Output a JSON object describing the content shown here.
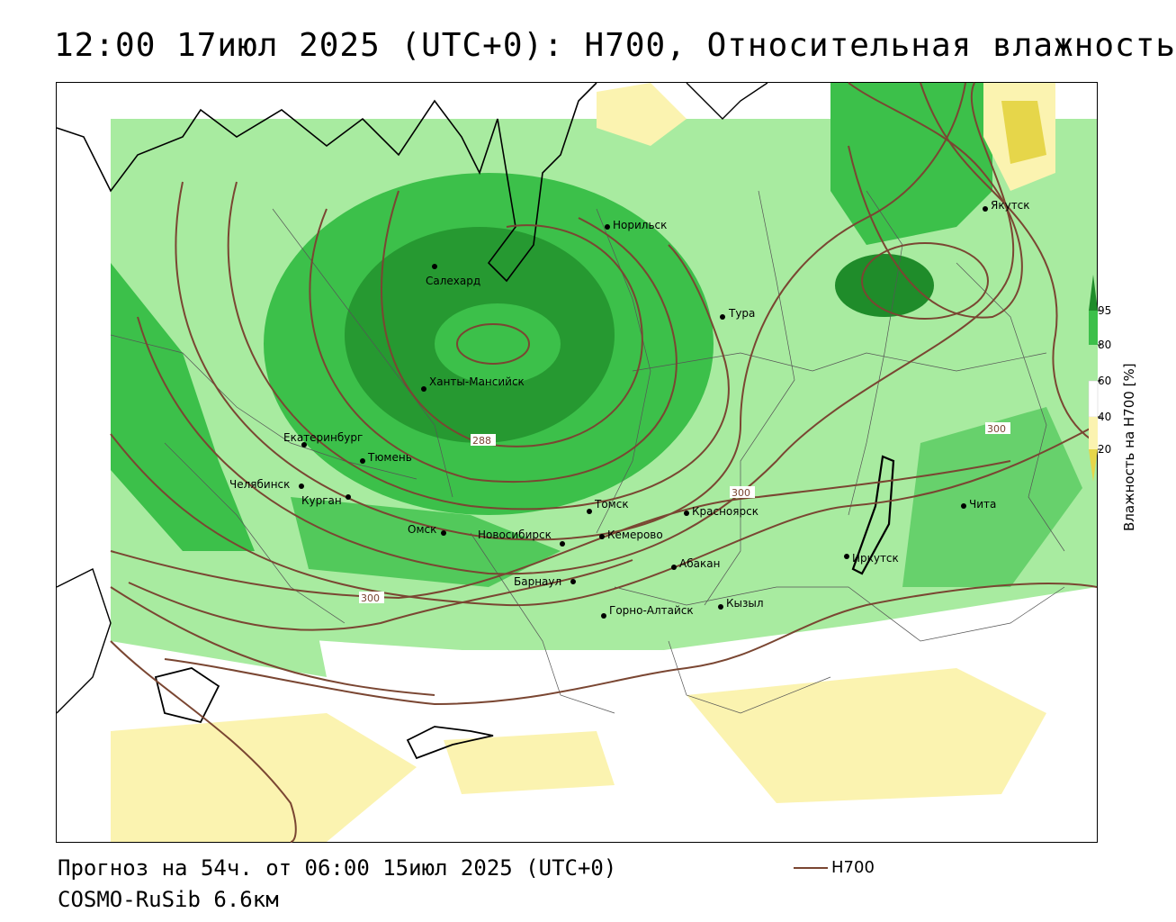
{
  "title": "12:00 17июл 2025 (UTC+0): H700, Относительная влажность",
  "footer": {
    "forecast": "Прогноз на 54ч. от 06:00 15июл 2025 (UTC+0)",
    "model": "COSMO-RuSib 6.6км"
  },
  "contour_legend": {
    "label": "H700"
  },
  "colorbar": {
    "title": "Влажность на H700 [%]",
    "ticks": [
      "95",
      "80",
      "60",
      "40",
      "20"
    ],
    "colors": {
      "dark_green": "#1f8c2a",
      "green": "#3cc04a",
      "light_green": "#a8eba0",
      "white": "#ffffff",
      "light_yellow": "#fbf3b0",
      "yellow": "#e6d64a"
    }
  },
  "contours": {
    "color": "#7a4632",
    "labels": [
      "288",
      "300",
      "300",
      "300"
    ]
  },
  "cities": [
    {
      "name": "Норильск"
    },
    {
      "name": "Якутск"
    },
    {
      "name": "Салехард"
    },
    {
      "name": "Тура"
    },
    {
      "name": "Ханты-Мансийск"
    },
    {
      "name": "Екатеринбург"
    },
    {
      "name": "Тюмень"
    },
    {
      "name": "Челябинск"
    },
    {
      "name": "Курган"
    },
    {
      "name": "Омск"
    },
    {
      "name": "Новосибирск"
    },
    {
      "name": "Томск"
    },
    {
      "name": "Кемерово"
    },
    {
      "name": "Красноярск"
    },
    {
      "name": "Барнаул"
    },
    {
      "name": "Абакан"
    },
    {
      "name": "Горно-Алтайск"
    },
    {
      "name": "Кызыл"
    },
    {
      "name": "Иркутск"
    },
    {
      "name": "Чита"
    }
  ]
}
